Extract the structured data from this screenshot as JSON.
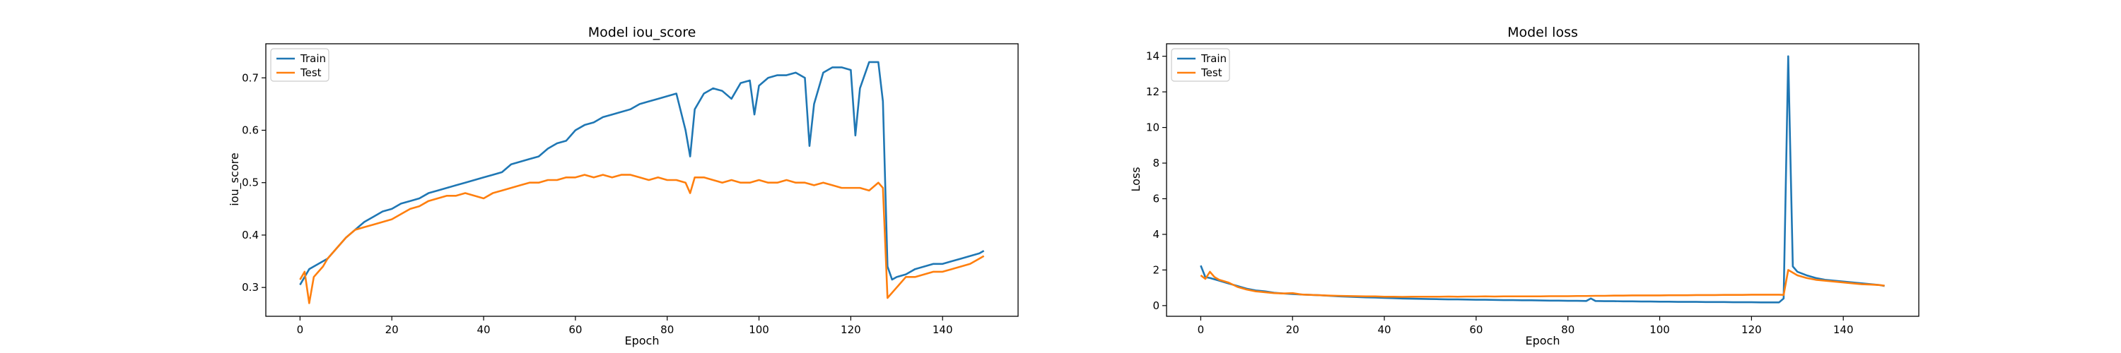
{
  "colors": {
    "train": "#1f77b4",
    "test": "#ff7f0e"
  },
  "chart_data": [
    {
      "type": "line",
      "title": "Model iou_score",
      "xlabel": "Epoch",
      "ylabel": "iou_score",
      "xlim": [
        -7.45,
        156.45
      ],
      "ylim": [
        0.245,
        0.765
      ],
      "xticks": [
        0,
        20,
        40,
        60,
        80,
        100,
        120,
        140
      ],
      "yticks": [
        0.3,
        0.4,
        0.5,
        0.6,
        0.7
      ],
      "ytick_labels": [
        "0.3",
        "0.4",
        "0.5",
        "0.6",
        "0.7"
      ],
      "legend": "upper-left",
      "grid": false,
      "series": [
        {
          "name": "Train",
          "color": "#1f77b4",
          "x": [
            0,
            2,
            4,
            6,
            8,
            10,
            12,
            14,
            16,
            18,
            20,
            22,
            24,
            26,
            28,
            30,
            32,
            34,
            36,
            38,
            40,
            42,
            44,
            46,
            48,
            50,
            52,
            54,
            56,
            58,
            60,
            62,
            64,
            66,
            68,
            70,
            72,
            74,
            76,
            78,
            80,
            82,
            84,
            85,
            86,
            88,
            90,
            92,
            94,
            96,
            98,
            99,
            100,
            102,
            104,
            106,
            108,
            110,
            111,
            112,
            114,
            116,
            118,
            120,
            121,
            122,
            124,
            126,
            127,
            128,
            129,
            130,
            132,
            134,
            136,
            138,
            140,
            142,
            144,
            146,
            148,
            149
          ],
          "y": [
            0.305,
            0.335,
            0.345,
            0.355,
            0.375,
            0.395,
            0.41,
            0.425,
            0.435,
            0.445,
            0.45,
            0.46,
            0.465,
            0.47,
            0.48,
            0.485,
            0.49,
            0.495,
            0.5,
            0.505,
            0.51,
            0.515,
            0.52,
            0.535,
            0.54,
            0.545,
            0.55,
            0.565,
            0.575,
            0.58,
            0.6,
            0.61,
            0.615,
            0.625,
            0.63,
            0.635,
            0.64,
            0.65,
            0.655,
            0.66,
            0.665,
            0.67,
            0.6,
            0.55,
            0.64,
            0.67,
            0.68,
            0.675,
            0.66,
            0.69,
            0.695,
            0.63,
            0.685,
            0.7,
            0.705,
            0.705,
            0.71,
            0.7,
            0.57,
            0.65,
            0.71,
            0.72,
            0.72,
            0.715,
            0.59,
            0.68,
            0.73,
            0.73,
            0.655,
            0.34,
            0.315,
            0.32,
            0.325,
            0.335,
            0.34,
            0.345,
            0.345,
            0.35,
            0.355,
            0.36,
            0.365,
            0.37
          ]
        },
        {
          "name": "Test",
          "color": "#ff7f0e",
          "x": [
            0,
            1,
            2,
            3,
            4,
            5,
            6,
            8,
            10,
            12,
            14,
            16,
            18,
            20,
            22,
            24,
            26,
            28,
            30,
            32,
            34,
            36,
            38,
            40,
            42,
            44,
            46,
            48,
            50,
            52,
            54,
            56,
            58,
            60,
            62,
            64,
            66,
            68,
            70,
            72,
            74,
            76,
            78,
            80,
            82,
            84,
            85,
            86,
            88,
            90,
            92,
            94,
            96,
            98,
            100,
            102,
            104,
            106,
            108,
            110,
            112,
            114,
            116,
            118,
            120,
            122,
            124,
            126,
            127,
            128,
            130,
            132,
            134,
            136,
            138,
            140,
            142,
            144,
            146,
            148,
            149
          ],
          "y": [
            0.315,
            0.33,
            0.27,
            0.32,
            0.33,
            0.34,
            0.355,
            0.375,
            0.395,
            0.41,
            0.415,
            0.42,
            0.425,
            0.43,
            0.44,
            0.45,
            0.455,
            0.465,
            0.47,
            0.475,
            0.475,
            0.48,
            0.475,
            0.47,
            0.48,
            0.485,
            0.49,
            0.495,
            0.5,
            0.5,
            0.505,
            0.505,
            0.51,
            0.51,
            0.515,
            0.51,
            0.515,
            0.51,
            0.515,
            0.515,
            0.51,
            0.505,
            0.51,
            0.505,
            0.505,
            0.5,
            0.48,
            0.51,
            0.51,
            0.505,
            0.5,
            0.505,
            0.5,
            0.5,
            0.505,
            0.5,
            0.5,
            0.505,
            0.5,
            0.5,
            0.495,
            0.5,
            0.495,
            0.49,
            0.49,
            0.49,
            0.485,
            0.5,
            0.49,
            0.28,
            0.3,
            0.32,
            0.32,
            0.325,
            0.33,
            0.33,
            0.335,
            0.34,
            0.345,
            0.355,
            0.36
          ]
        }
      ]
    },
    {
      "type": "line",
      "title": "Model loss",
      "xlabel": "Epoch",
      "ylabel": "Loss",
      "xlim": [
        -7.45,
        156.45
      ],
      "ylim": [
        -0.6,
        14.7
      ],
      "xticks": [
        0,
        20,
        40,
        60,
        80,
        100,
        120,
        140
      ],
      "yticks": [
        0,
        2,
        4,
        6,
        8,
        10,
        12,
        14
      ],
      "ytick_labels": [
        "0",
        "2",
        "4",
        "6",
        "8",
        "10",
        "12",
        "14"
      ],
      "legend": "upper-left",
      "grid": false,
      "series": [
        {
          "name": "Train",
          "color": "#1f77b4",
          "x": [
            0,
            1,
            2,
            4,
            6,
            8,
            10,
            12,
            14,
            16,
            18,
            20,
            22,
            24,
            26,
            28,
            30,
            32,
            34,
            36,
            38,
            40,
            42,
            44,
            46,
            48,
            50,
            52,
            54,
            56,
            58,
            60,
            62,
            64,
            66,
            68,
            70,
            72,
            74,
            76,
            78,
            80,
            82,
            84,
            85,
            86,
            88,
            90,
            92,
            94,
            96,
            98,
            100,
            102,
            104,
            106,
            108,
            110,
            112,
            114,
            116,
            118,
            120,
            122,
            124,
            126,
            127,
            128,
            129,
            130,
            132,
            134,
            136,
            138,
            140,
            142,
            144,
            146,
            148,
            149
          ],
          "y": [
            2.25,
            1.6,
            1.55,
            1.4,
            1.25,
            1.1,
            0.95,
            0.85,
            0.8,
            0.72,
            0.68,
            0.65,
            0.62,
            0.6,
            0.58,
            0.55,
            0.52,
            0.5,
            0.48,
            0.46,
            0.45,
            0.43,
            0.42,
            0.4,
            0.39,
            0.38,
            0.37,
            0.36,
            0.35,
            0.35,
            0.34,
            0.33,
            0.33,
            0.32,
            0.31,
            0.31,
            0.3,
            0.3,
            0.29,
            0.28,
            0.28,
            0.27,
            0.27,
            0.26,
            0.4,
            0.26,
            0.25,
            0.25,
            0.24,
            0.24,
            0.23,
            0.23,
            0.22,
            0.22,
            0.21,
            0.21,
            0.21,
            0.2,
            0.2,
            0.2,
            0.19,
            0.19,
            0.19,
            0.18,
            0.18,
            0.18,
            0.4,
            14.0,
            2.2,
            1.9,
            1.7,
            1.55,
            1.45,
            1.4,
            1.35,
            1.3,
            1.25,
            1.2,
            1.15,
            1.1
          ]
        },
        {
          "name": "Test",
          "color": "#ff7f0e",
          "x": [
            0,
            1,
            2,
            3,
            4,
            6,
            8,
            10,
            12,
            14,
            16,
            18,
            20,
            22,
            24,
            26,
            28,
            30,
            32,
            34,
            36,
            38,
            40,
            42,
            44,
            46,
            48,
            50,
            52,
            54,
            56,
            58,
            60,
            62,
            64,
            66,
            68,
            70,
            72,
            74,
            76,
            78,
            80,
            82,
            84,
            86,
            88,
            90,
            92,
            94,
            96,
            98,
            100,
            102,
            104,
            106,
            108,
            110,
            112,
            114,
            116,
            118,
            120,
            122,
            124,
            126,
            127,
            128,
            130,
            132,
            134,
            136,
            138,
            140,
            142,
            144,
            146,
            148,
            149
          ],
          "y": [
            1.7,
            1.5,
            1.9,
            1.6,
            1.45,
            1.3,
            1.05,
            0.9,
            0.8,
            0.75,
            0.7,
            0.68,
            0.7,
            0.62,
            0.6,
            0.58,
            0.56,
            0.55,
            0.54,
            0.53,
            0.52,
            0.52,
            0.5,
            0.5,
            0.49,
            0.5,
            0.5,
            0.5,
            0.5,
            0.51,
            0.5,
            0.51,
            0.51,
            0.52,
            0.51,
            0.52,
            0.52,
            0.52,
            0.52,
            0.52,
            0.53,
            0.53,
            0.53,
            0.54,
            0.54,
            0.55,
            0.55,
            0.56,
            0.56,
            0.57,
            0.57,
            0.57,
            0.57,
            0.58,
            0.58,
            0.58,
            0.59,
            0.59,
            0.59,
            0.6,
            0.6,
            0.6,
            0.61,
            0.61,
            0.61,
            0.61,
            0.6,
            2.0,
            1.7,
            1.55,
            1.45,
            1.4,
            1.35,
            1.3,
            1.25,
            1.2,
            1.18,
            1.15,
            1.12
          ]
        }
      ]
    }
  ]
}
